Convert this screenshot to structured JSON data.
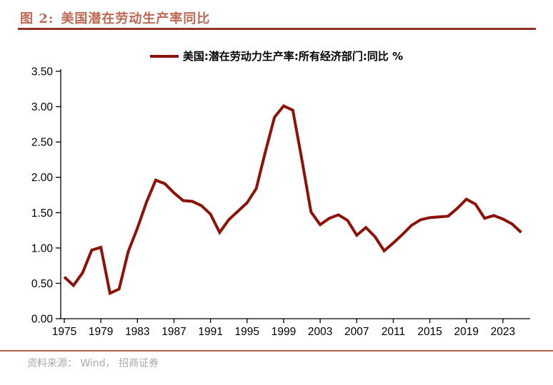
{
  "header": {
    "figure_label": "图 2:",
    "title": "美国潜在劳动生产率同比"
  },
  "legend": {
    "label": "美国:潜在劳动力生产率:所有经济部门:同比 %"
  },
  "footer": {
    "source": "资料来源： Wind， 招商证券"
  },
  "colors": {
    "line": "#8c1309",
    "title_text": "#bd6852",
    "title_rule": "#943223",
    "footer_rule": "#b4604f",
    "source_text": "#a9a9a9",
    "axis": "#000000"
  },
  "chart_data": {
    "type": "line",
    "title": "图 2: 美国潜在劳动生产率同比",
    "xlabel": "",
    "ylabel": "",
    "ylim": [
      0,
      3.5
    ],
    "ytick_step": 0.5,
    "ytick_decimals": 2,
    "grid": false,
    "legend_position": "top-center",
    "xticks": [
      1975,
      1979,
      1983,
      1987,
      1991,
      1995,
      1999,
      2003,
      2007,
      2011,
      2015,
      2019,
      2023
    ],
    "x": [
      1975,
      1976,
      1977,
      1978,
      1979,
      1980,
      1981,
      1982,
      1983,
      1984,
      1985,
      1986,
      1987,
      1988,
      1989,
      1990,
      1991,
      1992,
      1993,
      1994,
      1995,
      1996,
      1997,
      1998,
      1999,
      2000,
      2001,
      2002,
      2003,
      2004,
      2005,
      2006,
      2007,
      2008,
      2009,
      2010,
      2011,
      2012,
      2013,
      2014,
      2015,
      2016,
      2017,
      2018,
      2019,
      2020,
      2021,
      2022,
      2023,
      2024,
      2025
    ],
    "series": [
      {
        "name": "美国:潜在劳动力生产率:所有经济部门:同比 %",
        "values": [
          0.59,
          0.47,
          0.65,
          0.97,
          1.01,
          0.36,
          0.42,
          0.95,
          1.28,
          1.65,
          1.96,
          1.91,
          1.78,
          1.67,
          1.66,
          1.6,
          1.48,
          1.22,
          1.4,
          1.52,
          1.64,
          1.84,
          2.36,
          2.85,
          3.01,
          2.95,
          2.25,
          1.51,
          1.33,
          1.42,
          1.47,
          1.39,
          1.18,
          1.29,
          1.16,
          0.96,
          1.07,
          1.19,
          1.32,
          1.4,
          1.43,
          1.44,
          1.45,
          1.56,
          1.69,
          1.62,
          1.42,
          1.46,
          1.41,
          1.34,
          1.22
        ]
      }
    ]
  }
}
